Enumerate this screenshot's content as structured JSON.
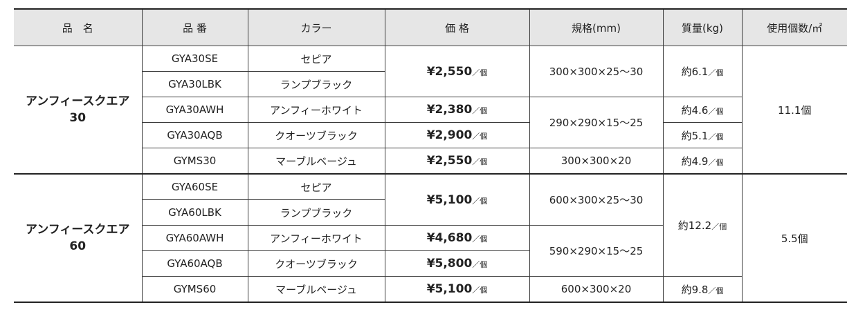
{
  "headers": [
    "品　名",
    "品 番",
    "カラー",
    "価 格",
    "規格(mm)",
    "質量(kg)",
    "使用個数/㎡"
  ],
  "per_unit": "／個",
  "groups": [
    {
      "name": [
        "アンフィースクエア",
        "30"
      ],
      "usage": "11.1個",
      "rows": [
        {
          "code": "GYA30SE",
          "color": "セピア",
          "price": "¥2,550",
          "price_span": 2,
          "spec": "300×300×25〜30",
          "spec_span": 2,
          "weight": "約6.1",
          "weight_span": 2
        },
        {
          "code": "GYA30LBK",
          "color": "ランプブラック"
        },
        {
          "code": "GYA30AWH",
          "color": "アンフィーホワイト",
          "price": "¥2,380",
          "price_span": 1,
          "spec": "290×290×15〜25",
          "spec_span": 2,
          "weight": "約4.6",
          "weight_span": 1
        },
        {
          "code": "GYA30AQB",
          "color": "クオーツブラック",
          "price": "¥2,900",
          "price_span": 1,
          "weight": "約5.1",
          "weight_span": 1
        },
        {
          "code": "GYMS30",
          "color": "マーブルベージュ",
          "price": "¥2,550",
          "price_span": 1,
          "spec": "300×300×20",
          "spec_span": 1,
          "weight": "約4.9",
          "weight_span": 1
        }
      ]
    },
    {
      "name": [
        "アンフィースクエア",
        "60"
      ],
      "usage": "5.5個",
      "rows": [
        {
          "code": "GYA60SE",
          "color": "セピア",
          "price": "¥5,100",
          "price_span": 2,
          "spec": "600×300×25〜30",
          "spec_span": 2,
          "weight": "約12.2",
          "weight_span": 4
        },
        {
          "code": "GYA60LBK",
          "color": "ランプブラック"
        },
        {
          "code": "GYA60AWH",
          "color": "アンフィーホワイト",
          "price": "¥4,680",
          "price_span": 1,
          "spec": "590×290×15〜25",
          "spec_span": 2
        },
        {
          "code": "GYA60AQB",
          "color": "クオーツブラック",
          "price": "¥5,800",
          "price_span": 1
        },
        {
          "code": "GYMS60",
          "color": "マーブルベージュ",
          "price": "¥5,100",
          "price_span": 1,
          "spec": "600×300×20",
          "spec_span": 1,
          "weight": "約9.8",
          "weight_span": 1
        }
      ]
    }
  ]
}
